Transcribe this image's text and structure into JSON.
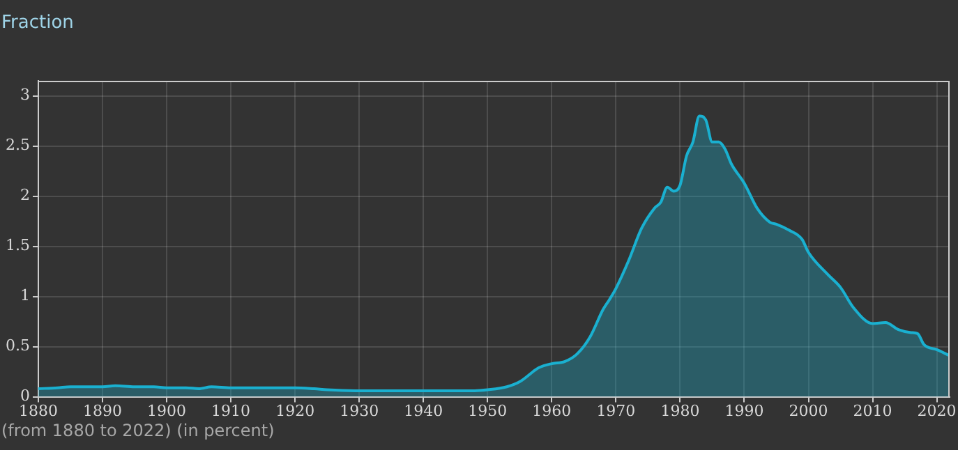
{
  "chart_data": {
    "type": "area",
    "title": "Fraction",
    "annotations": [
      "(from 1880 to 2022)  (in percent)"
    ],
    "x": [
      1880,
      1883,
      1885,
      1888,
      1890,
      1892,
      1895,
      1898,
      1900,
      1903,
      1905,
      1907,
      1910,
      1915,
      1920,
      1923,
      1925,
      1930,
      1935,
      1940,
      1945,
      1948,
      1950,
      1953,
      1955,
      1958,
      1960,
      1962,
      1964,
      1966,
      1968,
      1969,
      1970,
      1972,
      1974,
      1976,
      1977,
      1978,
      1979,
      1980,
      1981,
      1982,
      1983,
      1984,
      1985,
      1986,
      1987,
      1988,
      1990,
      1992,
      1994,
      1995,
      1997,
      1999,
      2000,
      2003,
      2005,
      2007,
      2010,
      2012,
      2014,
      2016,
      2017,
      2018,
      2020,
      2022
    ],
    "series": [
      {
        "color": "#1ab0d0",
        "values": [
          0.08,
          0.09,
          0.1,
          0.1,
          0.1,
          0.11,
          0.1,
          0.1,
          0.09,
          0.09,
          0.08,
          0.1,
          0.09,
          0.09,
          0.09,
          0.08,
          0.07,
          0.06,
          0.06,
          0.06,
          0.06,
          0.06,
          0.07,
          0.1,
          0.15,
          0.29,
          0.33,
          0.35,
          0.43,
          0.6,
          0.87,
          0.97,
          1.08,
          1.36,
          1.68,
          1.88,
          1.94,
          2.09,
          2.05,
          2.11,
          2.4,
          2.54,
          2.8,
          2.76,
          2.54,
          2.54,
          2.47,
          2.32,
          2.13,
          1.88,
          1.74,
          1.72,
          1.66,
          1.57,
          1.44,
          1.22,
          1.09,
          0.89,
          0.73,
          0.74,
          0.67,
          0.64,
          0.63,
          0.52,
          0.47,
          0.41
        ]
      }
    ],
    "xlim": [
      1880,
      2022
    ],
    "xticks": [
      1880,
      1890,
      1900,
      1910,
      1920,
      1930,
      1940,
      1950,
      1960,
      1970,
      1980,
      1990,
      2000,
      2010,
      2020
    ],
    "ylim": [
      0,
      3.15
    ],
    "yticks": [
      0,
      0.5,
      1,
      1.5,
      2,
      2.5,
      3
    ],
    "grid": true,
    "legend": false
  }
}
